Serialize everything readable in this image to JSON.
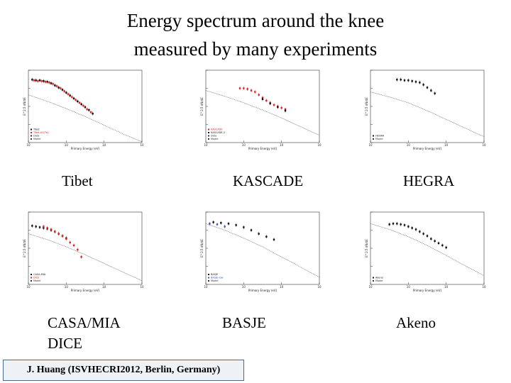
{
  "title": {
    "line1": "Energy spectrum around the knee",
    "line2": "measured by many experiments"
  },
  "footer": "J. Huang  (ISVHECRI2012,  Berlin,  Germany)",
  "colors": {
    "data_red": "#dd2222",
    "data_black": "#111111",
    "model_line": "#666666",
    "footer_border": "#4a6a8a"
  },
  "chart_data": [
    {
      "id": "tibet",
      "type": "scatter",
      "caption": "Tibet",
      "xlabel": "Primary Energy (eV)",
      "ylabel": "E^2.5 dN/dE",
      "xlim": [
        14,
        17
      ],
      "ylim": [
        0,
        1
      ],
      "model_line": {
        "x": [
          14.0,
          14.5,
          15.0,
          15.5,
          16.0,
          16.5,
          17.0
        ],
        "y": [
          0.66,
          0.57,
          0.47,
          0.36,
          0.24,
          0.12,
          0.01
        ]
      },
      "series": [
        {
          "name": "Tibet",
          "color": "#111111",
          "x": [
            14.1,
            14.2,
            14.3,
            14.4,
            14.5,
            14.6,
            14.7,
            14.8,
            14.9,
            15.0,
            15.1,
            15.2,
            15.3,
            15.4,
            15.5,
            15.6,
            15.7
          ],
          "y": [
            0.87,
            0.86,
            0.86,
            0.85,
            0.84,
            0.82,
            0.79,
            0.76,
            0.73,
            0.69,
            0.65,
            0.61,
            0.57,
            0.53,
            0.49,
            0.45,
            0.4
          ]
        },
        {
          "name": "Tibet-AS(Tb)",
          "color": "#dd2222",
          "x": [
            14.15,
            14.25,
            14.35,
            14.45,
            14.55,
            14.65,
            14.75,
            14.85,
            14.95,
            15.05,
            15.15,
            15.25,
            15.35,
            15.45,
            15.55,
            15.65
          ],
          "y": [
            0.86,
            0.85,
            0.85,
            0.84,
            0.83,
            0.81,
            0.78,
            0.75,
            0.71,
            0.67,
            0.63,
            0.59,
            0.55,
            0.51,
            0.46,
            0.42
          ]
        }
      ],
      "legend": [
        "Tibet",
        "Tibet-AS(Tb)",
        "Data",
        "Model"
      ]
    },
    {
      "id": "kascade",
      "type": "scatter",
      "caption": "KASCADE",
      "xlabel": "Primary Energy (eV)",
      "ylabel": "E^2.5 dN/dE",
      "xlim": [
        14,
        17
      ],
      "ylim": [
        0,
        1
      ],
      "model_line": {
        "x": [
          14.0,
          14.5,
          15.0,
          15.5,
          16.0,
          16.5,
          17.0
        ],
        "y": [
          0.72,
          0.64,
          0.55,
          0.45,
          0.34,
          0.22,
          0.1
        ]
      },
      "series": [
        {
          "name": "KASCADE",
          "color": "#dd2222",
          "x": [
            14.9,
            15.0,
            15.1,
            15.2,
            15.3,
            15.4,
            15.5,
            15.6,
            15.7,
            15.8,
            15.9,
            16.0,
            16.1
          ],
          "y": [
            0.75,
            0.75,
            0.74,
            0.72,
            0.7,
            0.66,
            0.62,
            0.58,
            0.55,
            0.52,
            0.5,
            0.48,
            0.46
          ]
        },
        {
          "name": "KASCADE-2",
          "color": "#111111",
          "x": [
            15.5,
            15.7,
            15.9,
            16.1
          ],
          "y": [
            0.6,
            0.54,
            0.49,
            0.44
          ]
        }
      ],
      "legend": [
        "KASCADE",
        "KASCADE-2",
        "Data",
        "Model"
      ]
    },
    {
      "id": "hegra",
      "type": "scatter",
      "caption": "HEGRA",
      "xlabel": "Primary Energy (eV)",
      "ylabel": "E^2.5 dN/dE",
      "xlim": [
        14,
        17
      ],
      "ylim": [
        0,
        1
      ],
      "model_line": {
        "x": [
          14.0,
          14.5,
          15.0,
          15.5,
          16.0,
          16.5,
          17.0
        ],
        "y": [
          0.7,
          0.63,
          0.55,
          0.44,
          0.32,
          0.2,
          0.08
        ]
      },
      "series": [
        {
          "name": "HEGRA",
          "color": "#111111",
          "x": [
            14.7,
            14.8,
            14.9,
            15.0,
            15.1,
            15.2,
            15.3,
            15.4,
            15.5,
            15.6,
            15.7
          ],
          "y": [
            0.87,
            0.87,
            0.86,
            0.86,
            0.85,
            0.84,
            0.83,
            0.8,
            0.76,
            0.72,
            0.68
          ]
        }
      ],
      "legend": [
        "HEGRA",
        "Model"
      ]
    },
    {
      "id": "casamia",
      "type": "scatter",
      "caption": "CASA/MIA",
      "caption_line2": "DICE",
      "xlabel": "Primary Energy (eV)",
      "ylabel": "E^2.5 dN/dE",
      "xlim": [
        14,
        17
      ],
      "ylim": [
        0,
        1
      ],
      "model_line": {
        "x": [
          14.0,
          14.5,
          15.0,
          15.5,
          16.0,
          16.5,
          17.0
        ],
        "y": [
          0.7,
          0.62,
          0.52,
          0.41,
          0.29,
          0.17,
          0.05
        ]
      },
      "series": [
        {
          "name": "CASA-MIA",
          "color": "#111111",
          "x": [
            14.1,
            14.2,
            14.3,
            14.4,
            14.5,
            14.6,
            14.7,
            14.8,
            14.9,
            15.0
          ],
          "y": [
            0.81,
            0.8,
            0.79,
            0.78,
            0.77,
            0.75,
            0.73,
            0.7,
            0.67,
            0.64
          ]
        },
        {
          "name": "DICE",
          "color": "#dd2222",
          "x": [
            14.4,
            14.5,
            14.6,
            14.7,
            14.8,
            14.9,
            15.0,
            15.1,
            15.2,
            15.3,
            15.4
          ],
          "y": [
            0.8,
            0.78,
            0.76,
            0.73,
            0.7,
            0.67,
            0.63,
            0.58,
            0.54,
            0.48,
            0.38
          ]
        }
      ],
      "legend": [
        "CASA-MIA",
        "DICE",
        "Model"
      ]
    },
    {
      "id": "basje",
      "type": "scatter",
      "caption": "BASJE",
      "xlabel": "Primary Energy (eV)",
      "ylabel": "E^2.5 dN/dE",
      "xlim": [
        14,
        17
      ],
      "ylim": [
        0,
        1
      ],
      "model_line": {
        "x": [
          14.0,
          14.5,
          15.0,
          15.5,
          16.0,
          16.5,
          17.0
        ],
        "y": [
          0.84,
          0.75,
          0.64,
          0.52,
          0.38,
          0.24,
          0.1
        ]
      },
      "series": [
        {
          "name": "BASJE",
          "color": "#111111",
          "x": [
            14.2,
            14.4,
            14.6,
            14.8,
            15.0,
            15.2,
            15.4,
            15.6,
            15.8
          ],
          "y": [
            0.86,
            0.85,
            0.84,
            0.82,
            0.79,
            0.75,
            0.7,
            0.66,
            0.62
          ]
        },
        {
          "name": "BASJE-low",
          "color": "#3a55c8",
          "x": [
            14.1,
            14.3,
            14.5
          ],
          "y": [
            0.84,
            0.83,
            0.8
          ]
        }
      ],
      "legend": [
        "BASJE",
        "BASJE-low",
        "Model"
      ]
    },
    {
      "id": "akeno",
      "type": "scatter",
      "caption": "Akeno",
      "xlabel": "Primary Energy (eV)",
      "ylabel": "E^2.5 dN/dE",
      "xlim": [
        14,
        17
      ],
      "ylim": [
        0,
        1
      ],
      "model_line": {
        "x": [
          14.0,
          14.5,
          15.0,
          15.5,
          16.0,
          16.5,
          17.0
        ],
        "y": [
          0.84,
          0.76,
          0.66,
          0.54,
          0.4,
          0.26,
          0.12
        ]
      },
      "series": [
        {
          "name": "Akeno",
          "color": "#111111",
          "x": [
            14.5,
            14.6,
            14.7,
            14.8,
            14.9,
            15.0,
            15.1,
            15.2,
            15.3,
            15.4,
            15.5,
            15.6,
            15.7,
            15.8,
            15.9,
            16.0
          ],
          "y": [
            0.83,
            0.84,
            0.84,
            0.83,
            0.82,
            0.8,
            0.78,
            0.76,
            0.73,
            0.7,
            0.67,
            0.63,
            0.6,
            0.57,
            0.54,
            0.51
          ]
        }
      ],
      "legend": [
        "Akeno",
        "Model"
      ]
    }
  ]
}
